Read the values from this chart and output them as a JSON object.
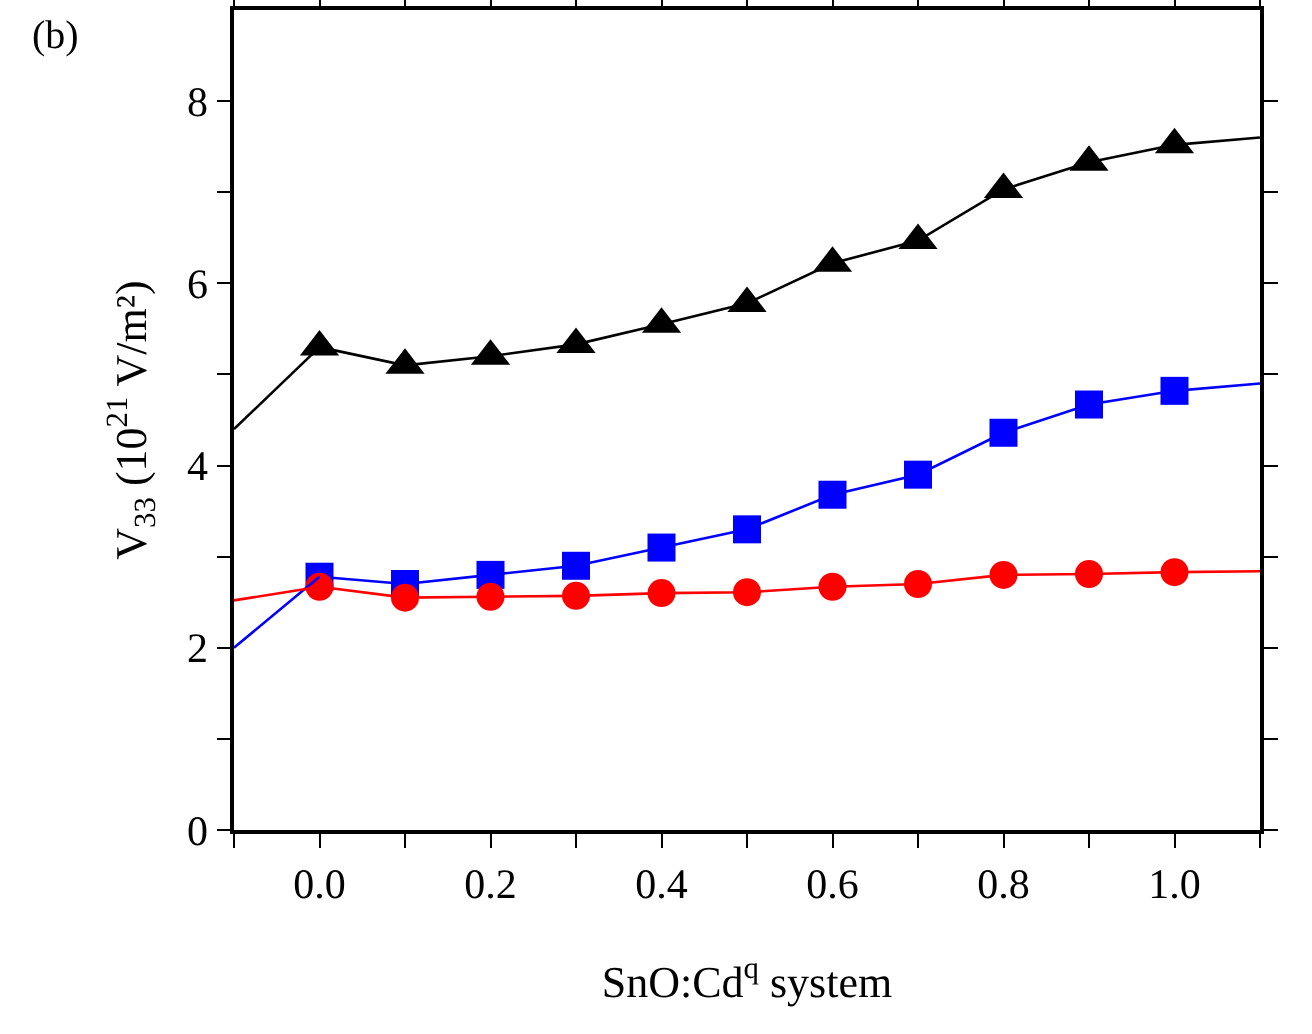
{
  "chart_data": {
    "type": "line",
    "xlabel": "SnO:Cd$^{q}$ system",
    "ylabel": "V$_{33}$ (10$^{21}$ V/m²)",
    "annotations": [
      "(b)"
    ],
    "x": [
      0,
      0.1,
      0.2,
      0.3,
      0.4,
      0.5,
      0.6,
      0.7,
      0.8,
      0.9,
      1.0
    ],
    "series": [
      {
        "color": "#000000",
        "marker": "triangle",
        "values": [
          5.3,
          5.1,
          5.2,
          5.33,
          5.55,
          5.78,
          6.22,
          6.47,
          7.03,
          7.33,
          7.52
        ]
      },
      {
        "color": "#0000ff",
        "marker": "square",
        "values": [
          2.78,
          2.7,
          2.8,
          2.9,
          3.1,
          3.3,
          3.68,
          3.9,
          4.36,
          4.67,
          4.82
        ]
      },
      {
        "color": "#ff0000",
        "marker": "circle",
        "values": [
          2.67,
          2.55,
          2.56,
          2.57,
          2.6,
          2.61,
          2.67,
          2.7,
          2.8,
          2.81,
          2.83
        ]
      },
      {
        "color": "#000000",
        "marker": "none",
        "x": [
          -0.1,
          0,
          0.5,
          1.0,
          1.1
        ],
        "values": [
          4.4,
          5.3,
          null,
          7.52,
          7.6
        ]
      },
      {
        "color": "#0000ff",
        "marker": "none",
        "x": [
          -0.1,
          0,
          0.5,
          1.0,
          1.1
        ],
        "values": [
          2.0,
          2.78,
          null,
          4.82,
          4.9
        ]
      },
      {
        "color": "#ff0000",
        "marker": "none",
        "x": [
          -0.1,
          0,
          0.5,
          1.0,
          1.1
        ],
        "values": [
          2.52,
          2.67,
          null,
          2.83,
          2.84
        ]
      }
    ],
    "xlim": [
      -0.1,
      1.1
    ],
    "xticks": [
      {
        "value": -0.1,
        "label": null
      },
      {
        "value": 0,
        "label": "0.0"
      },
      {
        "value": 0.1,
        "label": null
      },
      {
        "value": 0.2,
        "label": "0.2"
      },
      {
        "value": 0.3,
        "label": null
      },
      {
        "value": 0.4,
        "label": "0.4"
      },
      {
        "value": 0.5,
        "label": null
      },
      {
        "value": 0.6,
        "label": "0.6"
      },
      {
        "value": 0.7,
        "label": null
      },
      {
        "value": 0.8,
        "label": "0.8"
      },
      {
        "value": 0.9,
        "label": null
      },
      {
        "value": 1.0,
        "label": "1.0"
      },
      {
        "value": 1.1,
        "label": null
      }
    ],
    "ylim": [
      0,
      9
    ],
    "yticks": [
      0,
      {
        "value": 1,
        "label": null
      },
      2,
      {
        "value": 3,
        "label": null
      },
      4,
      {
        "value": 5,
        "label": null
      },
      6,
      {
        "value": 7,
        "label": null
      },
      8
    ],
    "grid": false,
    "line_style": "solid"
  }
}
